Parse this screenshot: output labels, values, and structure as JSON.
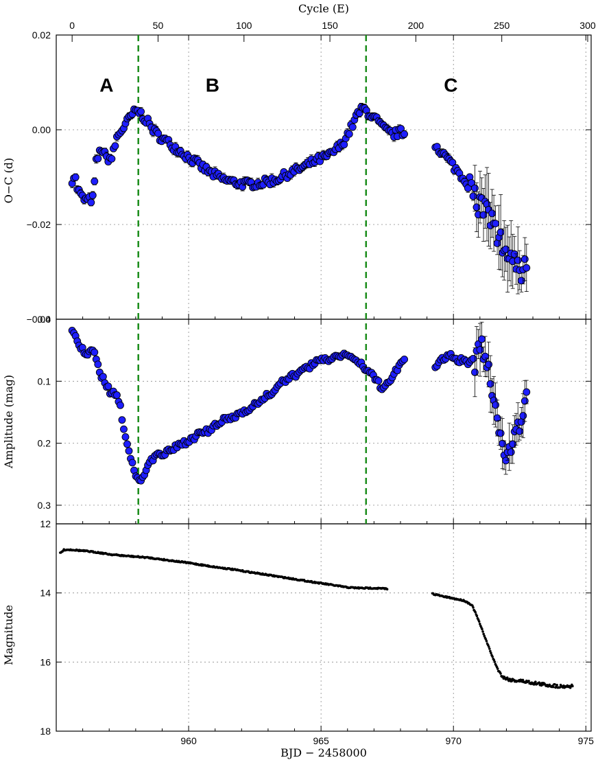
{
  "chart_data": {
    "type": "scatter",
    "shared_x": {
      "xlabel": "BJD − 2458000",
      "xlim": [
        955.0,
        975.2
      ],
      "ticks": [
        960,
        965,
        970,
        975
      ],
      "top_axis": {
        "xlabel": "Cycle (E)",
        "ticks": [
          0,
          50,
          100,
          150,
          200,
          250,
          300
        ],
        "cycle_zero_bjd": 955.6,
        "cycle_period_d": 0.0649
      }
    },
    "vertical_markers": {
      "color": "#1a8c1a",
      "style": "dashed",
      "x": [
        958.1,
        966.7
      ]
    },
    "stage_labels": [
      {
        "text": "A",
        "x": 956.9,
        "y": 0.0095
      },
      {
        "text": "B",
        "x": 960.9,
        "y": 0.0095
      },
      {
        "text": "C",
        "x": 969.9,
        "y": 0.0095
      }
    ],
    "panels": [
      {
        "name": "oc",
        "ylabel": "O−C (d)",
        "ylim": [
          0.02,
          -0.04
        ],
        "ticks": [
          0.02,
          0.0,
          -0.02,
          -0.04
        ],
        "tick_labels": [
          "0.02",
          "0.00",
          "−0.02",
          "−0.04"
        ],
        "grid": true,
        "marker_color": "#1e1eff",
        "error_bars": true,
        "trend": [
          [
            955.6,
            -0.0105
          ],
          [
            955.7,
            -0.0095
          ],
          [
            955.8,
            -0.0125
          ],
          [
            956.0,
            -0.0145
          ],
          [
            956.2,
            -0.015
          ],
          [
            956.4,
            -0.0145
          ],
          [
            956.5,
            -0.007
          ],
          [
            956.7,
            -0.004
          ],
          [
            956.9,
            -0.006
          ],
          [
            957.1,
            -0.006
          ],
          [
            957.3,
            -0.0015
          ],
          [
            957.6,
            0.001
          ],
          [
            957.9,
            0.0035
          ],
          [
            958.1,
            0.004
          ],
          [
            958.4,
            0.002
          ],
          [
            958.8,
            -0.001
          ],
          [
            959.3,
            -0.003
          ],
          [
            959.8,
            -0.005
          ],
          [
            960.3,
            -0.007
          ],
          [
            960.8,
            -0.009
          ],
          [
            961.3,
            -0.0105
          ],
          [
            961.8,
            -0.0112
          ],
          [
            962.3,
            -0.0115
          ],
          [
            962.8,
            -0.0112
          ],
          [
            963.3,
            -0.0105
          ],
          [
            963.8,
            -0.0092
          ],
          [
            964.3,
            -0.008
          ],
          [
            964.8,
            -0.0065
          ],
          [
            965.3,
            -0.0055
          ],
          [
            965.8,
            -0.003
          ],
          [
            966.1,
            0.0
          ],
          [
            966.4,
            0.0035
          ],
          [
            966.6,
            0.0045
          ],
          [
            966.9,
            0.003
          ],
          [
            967.1,
            0.002
          ],
          [
            967.4,
            0.0
          ],
          [
            967.7,
            -0.001
          ],
          [
            968.0,
            -0.0005
          ],
          [
            968.2,
            -0.001
          ],
          [
            969.3,
            -0.003
          ],
          [
            969.6,
            -0.005
          ],
          [
            969.9,
            -0.007
          ],
          [
            970.2,
            -0.009
          ],
          [
            970.5,
            -0.011
          ],
          [
            970.8,
            -0.014
          ],
          [
            971.1,
            -0.0165
          ],
          [
            971.4,
            -0.019
          ],
          [
            971.7,
            -0.023
          ],
          [
            972.0,
            -0.0255
          ],
          [
            972.3,
            -0.027
          ],
          [
            972.6,
            -0.03
          ],
          [
            972.8,
            -0.026
          ]
        ]
      },
      {
        "name": "amplitude",
        "ylabel": "Amplitude (mag)",
        "ylim": [
          0.0,
          0.33
        ],
        "ticks": [
          0.0,
          0.1,
          0.2,
          0.3
        ],
        "tick_labels": [
          "0.0",
          "0.1",
          "0.2",
          "0.3"
        ],
        "grid": true,
        "marker_color": "#1e1eff",
        "error_bars": true,
        "trend": [
          [
            955.6,
            0.02
          ],
          [
            955.8,
            0.035
          ],
          [
            956.0,
            0.05
          ],
          [
            956.2,
            0.06
          ],
          [
            956.4,
            0.045
          ],
          [
            956.6,
            0.08
          ],
          [
            956.8,
            0.1
          ],
          [
            957.0,
            0.115
          ],
          [
            957.2,
            0.12
          ],
          [
            957.4,
            0.135
          ],
          [
            957.6,
            0.19
          ],
          [
            957.8,
            0.22
          ],
          [
            958.0,
            0.255
          ],
          [
            958.2,
            0.26
          ],
          [
            958.5,
            0.23
          ],
          [
            958.8,
            0.22
          ],
          [
            959.2,
            0.215
          ],
          [
            959.6,
            0.205
          ],
          [
            960.0,
            0.195
          ],
          [
            960.4,
            0.185
          ],
          [
            960.8,
            0.18
          ],
          [
            961.2,
            0.165
          ],
          [
            961.6,
            0.16
          ],
          [
            962.0,
            0.15
          ],
          [
            962.4,
            0.14
          ],
          [
            962.8,
            0.13
          ],
          [
            963.2,
            0.115
          ],
          [
            963.6,
            0.1
          ],
          [
            964.0,
            0.09
          ],
          [
            964.4,
            0.08
          ],
          [
            964.8,
            0.07
          ],
          [
            965.2,
            0.065
          ],
          [
            965.6,
            0.06
          ],
          [
            966.0,
            0.055
          ],
          [
            966.4,
            0.07
          ],
          [
            966.7,
            0.08
          ],
          [
            967.0,
            0.095
          ],
          [
            967.3,
            0.11
          ],
          [
            967.6,
            0.1
          ],
          [
            967.9,
            0.08
          ],
          [
            968.2,
            0.06
          ],
          [
            969.3,
            0.075
          ],
          [
            969.6,
            0.065
          ],
          [
            969.9,
            0.06
          ],
          [
            970.2,
            0.065
          ],
          [
            970.5,
            0.07
          ],
          [
            970.8,
            0.08
          ],
          [
            971.0,
            0.04
          ],
          [
            971.2,
            0.06
          ],
          [
            971.4,
            0.1
          ],
          [
            971.6,
            0.14
          ],
          [
            971.8,
            0.2
          ],
          [
            972.0,
            0.22
          ],
          [
            972.2,
            0.21
          ],
          [
            972.4,
            0.18
          ],
          [
            972.6,
            0.15
          ],
          [
            972.8,
            0.1
          ]
        ]
      },
      {
        "name": "magnitude",
        "ylabel": "Magnitude",
        "ylim": [
          12.0,
          18.0
        ],
        "ticks": [
          12,
          14,
          16,
          18
        ],
        "tick_labels": [
          "12",
          "14",
          "16",
          "18"
        ],
        "grid": true,
        "marker_color": "#000000",
        "error_bars": false,
        "trend": [
          [
            955.15,
            12.85
          ],
          [
            955.3,
            12.75
          ],
          [
            955.6,
            12.75
          ],
          [
            956.0,
            12.78
          ],
          [
            956.5,
            12.82
          ],
          [
            957.0,
            12.88
          ],
          [
            957.5,
            12.92
          ],
          [
            958.0,
            12.95
          ],
          [
            958.5,
            12.98
          ],
          [
            959.0,
            13.03
          ],
          [
            959.5,
            13.08
          ],
          [
            960.0,
            13.13
          ],
          [
            960.5,
            13.19
          ],
          [
            961.0,
            13.25
          ],
          [
            961.5,
            13.3
          ],
          [
            962.0,
            13.36
          ],
          [
            962.5,
            13.42
          ],
          [
            963.0,
            13.48
          ],
          [
            963.5,
            13.54
          ],
          [
            964.0,
            13.6
          ],
          [
            964.5,
            13.66
          ],
          [
            965.0,
            13.72
          ],
          [
            965.5,
            13.78
          ],
          [
            966.0,
            13.84
          ],
          [
            966.5,
            13.86
          ],
          [
            967.0,
            13.86
          ],
          [
            967.5,
            13.88
          ],
          [
            968.2,
            13.92
          ],
          [
            969.2,
            14.02
          ],
          [
            969.6,
            14.1
          ],
          [
            970.0,
            14.16
          ],
          [
            970.4,
            14.22
          ],
          [
            970.7,
            14.35
          ],
          [
            970.9,
            14.7
          ],
          [
            971.1,
            15.1
          ],
          [
            971.3,
            15.5
          ],
          [
            971.5,
            15.9
          ],
          [
            971.7,
            16.25
          ],
          [
            971.9,
            16.45
          ],
          [
            972.2,
            16.52
          ],
          [
            972.6,
            16.55
          ],
          [
            973.0,
            16.6
          ],
          [
            973.5,
            16.66
          ],
          [
            974.0,
            16.7
          ],
          [
            974.5,
            16.7
          ],
          [
            975.1,
            16.72
          ]
        ]
      }
    ]
  }
}
